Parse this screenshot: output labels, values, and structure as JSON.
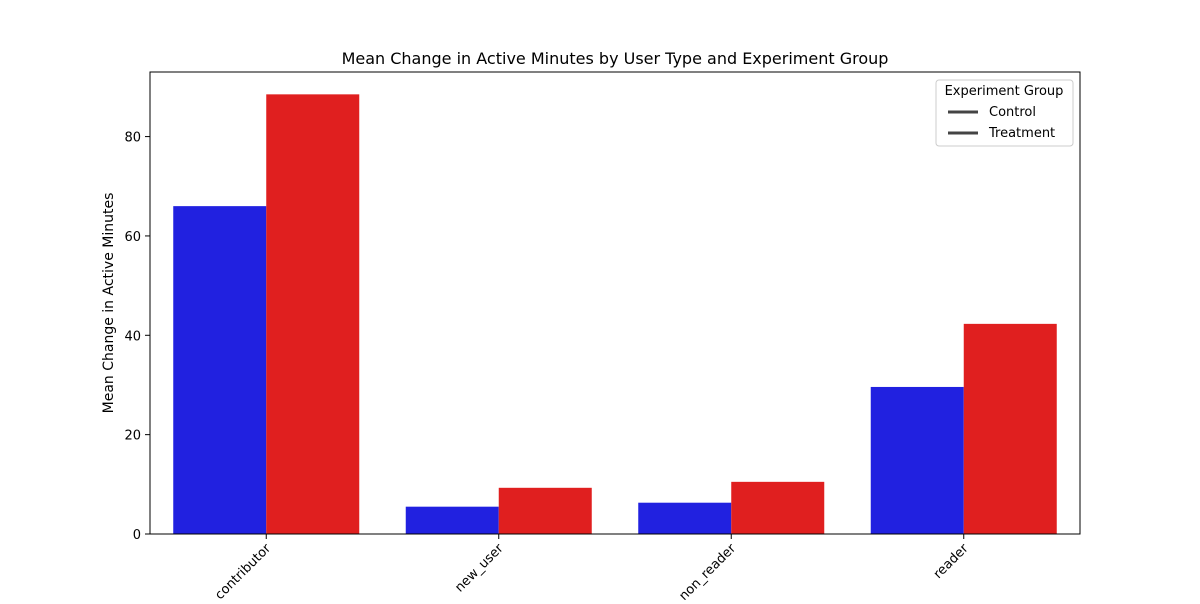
{
  "chart_data": {
    "type": "bar",
    "title": "Mean Change in Active Minutes by User Type and Experiment Group",
    "xlabel": "",
    "ylabel": "Mean Change in Active Minutes",
    "categories": [
      "contributor",
      "new_user",
      "non_reader",
      "reader"
    ],
    "series": [
      {
        "name": "Control",
        "values": [
          66.0,
          5.5,
          6.3,
          29.6
        ],
        "color": "#2121e0"
      },
      {
        "name": "Treatment",
        "values": [
          88.5,
          9.3,
          10.5,
          42.3
        ],
        "color": "#e01f1f"
      }
    ],
    "ylim": [
      0,
      93
    ],
    "yticks": [
      0,
      20,
      40,
      60,
      80
    ],
    "grid": false,
    "legend": {
      "title": "Experiment Group",
      "placement": "top-right",
      "entries": [
        "Control",
        "Treatment"
      ]
    }
  }
}
